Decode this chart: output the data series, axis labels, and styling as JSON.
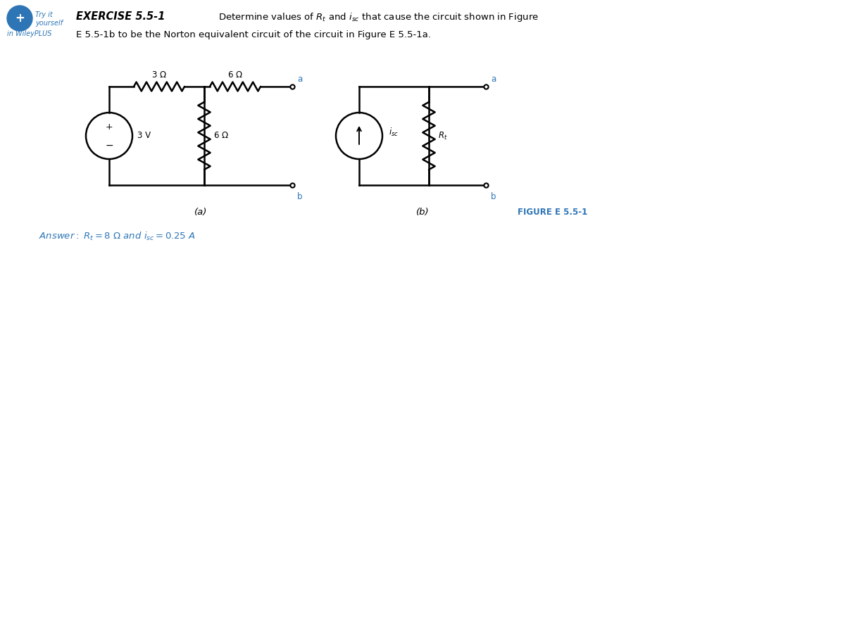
{
  "bg_color": "#ffffff",
  "black": "#000000",
  "blue": "#2E75B6",
  "fig_width": 12.0,
  "fig_height": 8.98,
  "header_exercise": "EXERCISE 5.5-1",
  "header_desc_line1": "Determine values of R",
  "header_desc_line2": "E 5.5-1b to be the Norton equivalent circuit of the circuit in Figure E 5.5-1a.",
  "try_it_line1": "Try it",
  "try_it_line2": "yourself",
  "wileyplus": "in WileyPLUS",
  "label_a": "(a)",
  "label_b": "(b)",
  "figure_label": "FIGURE E 5.5-1",
  "answer": "Answer: R",
  "lw_circuit": 1.8,
  "lw_wire": 1.8
}
